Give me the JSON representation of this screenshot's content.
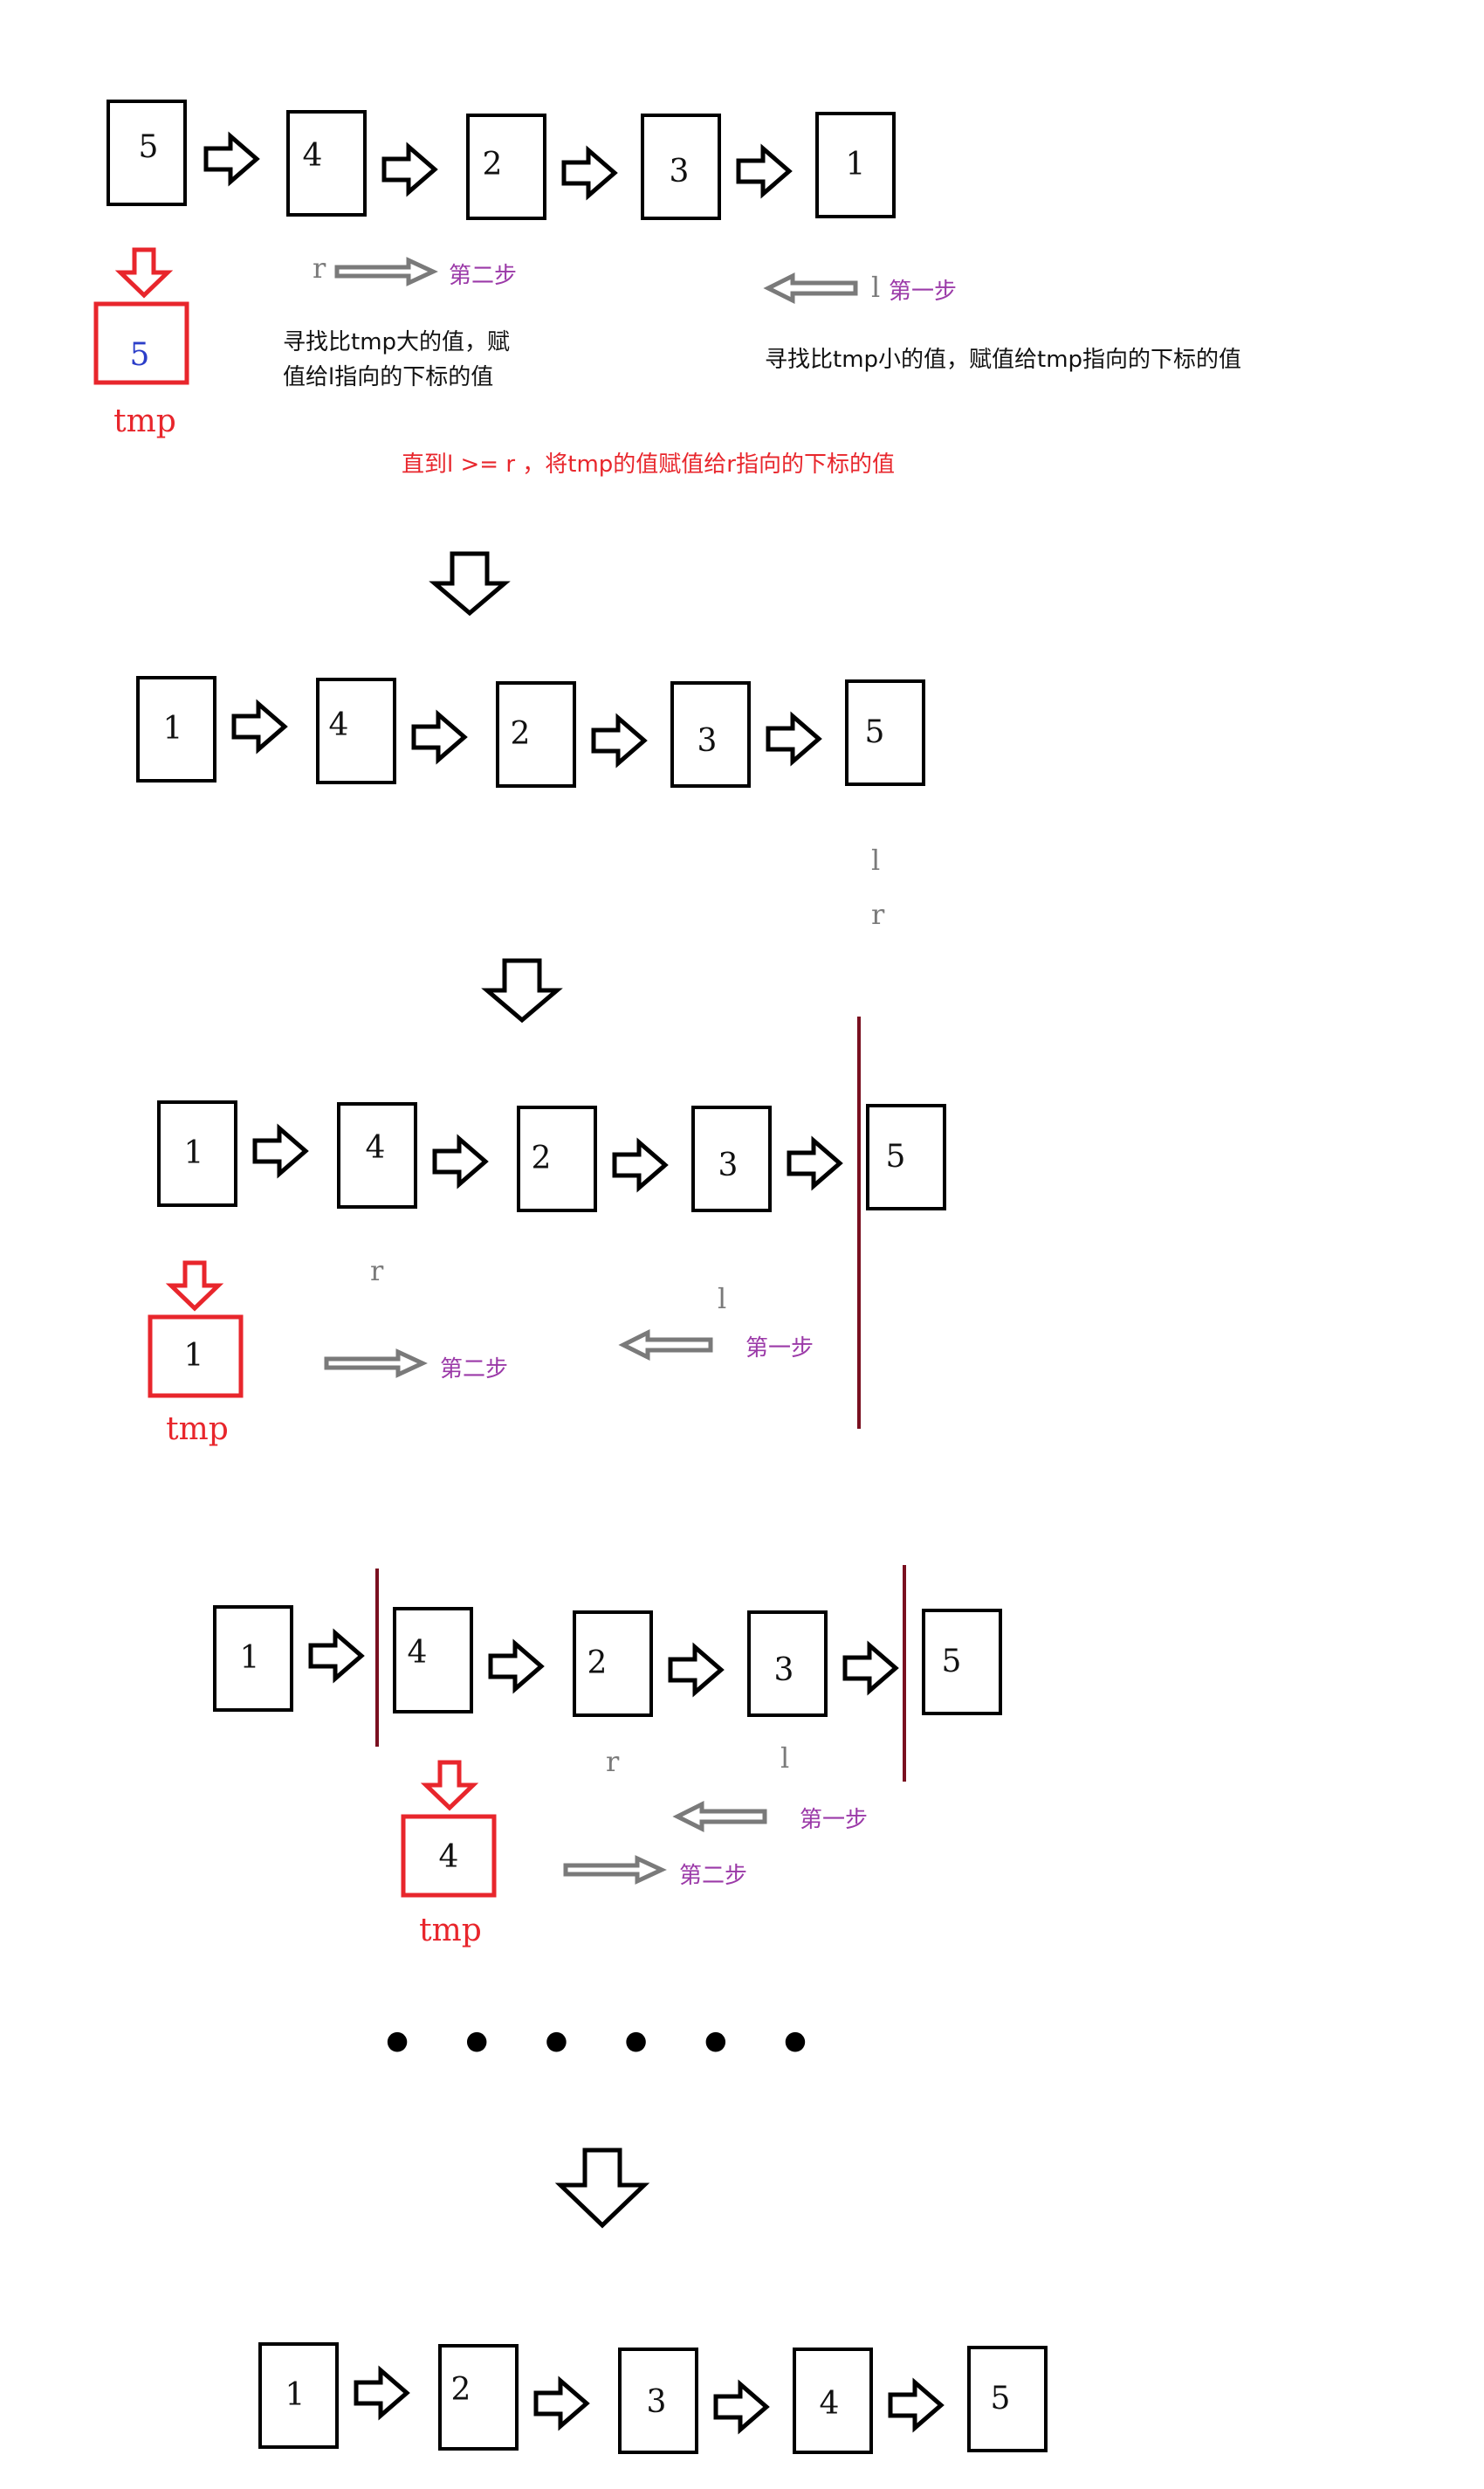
{
  "rows": [
    {
      "values": [
        "5",
        "4",
        "2",
        "3",
        "1"
      ]
    },
    {
      "values": [
        "1",
        "4",
        "2",
        "3",
        "5"
      ]
    },
    {
      "values": [
        "1",
        "4",
        "2",
        "3",
        "5"
      ]
    },
    {
      "values": [
        "1",
        "4",
        "2",
        "3",
        "5"
      ]
    },
    {
      "values": [
        "1",
        "2",
        "3",
        "4",
        "5"
      ]
    }
  ],
  "tmp": [
    {
      "value": "5",
      "label": "tmp"
    },
    {
      "value": "1",
      "label": "tmp"
    },
    {
      "value": "4",
      "label": "tmp"
    }
  ],
  "pointers": {
    "left": "l",
    "right": "r"
  },
  "steps": {
    "first": "第一步",
    "second": "第二步"
  },
  "notes": {
    "find_larger": "寻找比tmp大的值，赋",
    "find_larger_2": "值给l指向的下标的值",
    "find_smaller": "寻找比tmp小的值，赋值给tmp指向的下标的值",
    "until": "直到l >= r ，将tmp的值赋值给r指向的下标的值"
  },
  "ellipsis": "• • • • • •",
  "colors": {
    "tmp_box": "#e8262c",
    "step_text": "#9b3aa8",
    "pointer_text": "#7a7a7a",
    "partition_line": "#7a1020",
    "first_tmp_value": "#2b3ec9"
  }
}
